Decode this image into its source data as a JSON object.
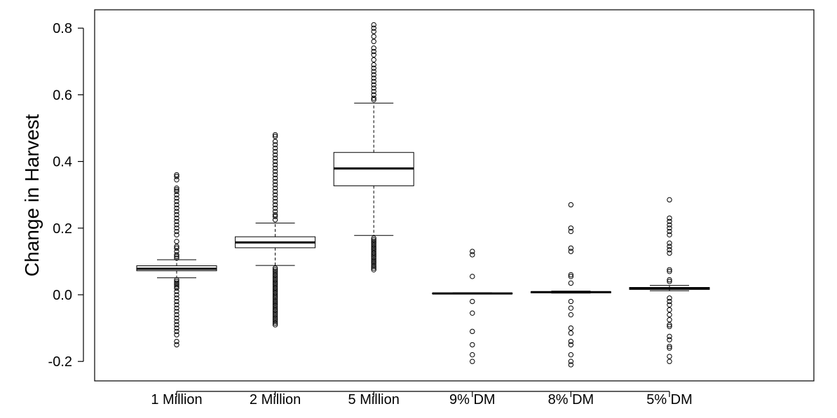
{
  "chart_data": {
    "type": "boxplot",
    "title": "",
    "xlabel": "",
    "ylabel": "Change in Harvest",
    "ylim": [
      -0.25,
      0.83
    ],
    "yticks": [
      -0.2,
      0.0,
      0.2,
      0.4,
      0.6,
      0.8
    ],
    "ytick_labels": [
      "-0.2",
      "0.0",
      "0.2",
      "0.4",
      "0.6",
      "0.8"
    ],
    "grid": false,
    "legend": "none",
    "categories": [
      "1 Million",
      "2 Million",
      "5 Million",
      "9% DM",
      "8% DM",
      "5% DM"
    ],
    "boxes": [
      {
        "category": "1 Million",
        "whisker_low": 0.051,
        "q1": 0.072,
        "median": 0.078,
        "q3": 0.087,
        "whisker_high": 0.105,
        "outliers": [
          0.36,
          0.355,
          0.345,
          0.32,
          0.315,
          0.31,
          0.3,
          0.29,
          0.28,
          0.27,
          0.26,
          0.25,
          0.24,
          0.23,
          0.22,
          0.21,
          0.2,
          0.19,
          0.18,
          0.16,
          0.145,
          0.14,
          0.13,
          0.12,
          0.115,
          0.11,
          0.045,
          0.04,
          0.035,
          0.03,
          0.025,
          0.02,
          0.01,
          0.0,
          -0.01,
          -0.02,
          -0.03,
          -0.04,
          -0.05,
          -0.06,
          -0.07,
          -0.08,
          -0.09,
          -0.1,
          -0.11,
          -0.12,
          -0.14,
          -0.15
        ]
      },
      {
        "category": "2 Million",
        "whisker_low": 0.088,
        "q1": 0.141,
        "median": 0.157,
        "q3": 0.174,
        "whisker_high": 0.215,
        "outliers": [
          0.48,
          0.475,
          0.46,
          0.45,
          0.44,
          0.43,
          0.42,
          0.41,
          0.4,
          0.39,
          0.38,
          0.37,
          0.36,
          0.35,
          0.34,
          0.33,
          0.32,
          0.31,
          0.3,
          0.29,
          0.28,
          0.27,
          0.26,
          0.25,
          0.24,
          0.235,
          0.225,
          0.08,
          0.075,
          0.07,
          0.065,
          0.06,
          0.055,
          0.05,
          0.045,
          0.04,
          0.035,
          0.03,
          0.025,
          0.02,
          0.015,
          0.01,
          0.005,
          0.0,
          -0.005,
          -0.01,
          -0.015,
          -0.02,
          -0.025,
          -0.03,
          -0.035,
          -0.04,
          -0.045,
          -0.05,
          -0.055,
          -0.06,
          -0.065,
          -0.07,
          -0.075,
          -0.08,
          -0.085,
          -0.09
        ]
      },
      {
        "category": "5 Million",
        "whisker_low": 0.178,
        "q1": 0.327,
        "median": 0.379,
        "q3": 0.427,
        "whisker_high": 0.575,
        "outliers": [
          0.81,
          0.8,
          0.79,
          0.775,
          0.76,
          0.74,
          0.73,
          0.72,
          0.705,
          0.69,
          0.68,
          0.67,
          0.66,
          0.65,
          0.64,
          0.63,
          0.62,
          0.61,
          0.6,
          0.59,
          0.585,
          0.17,
          0.165,
          0.16,
          0.155,
          0.15,
          0.145,
          0.14,
          0.135,
          0.13,
          0.125,
          0.12,
          0.115,
          0.11,
          0.105,
          0.1,
          0.095,
          0.09,
          0.085,
          0.08,
          0.075
        ]
      },
      {
        "category": "9% DM",
        "whisker_low": 0.002,
        "q1": 0.003,
        "median": 0.004,
        "q3": 0.005,
        "whisker_high": 0.006,
        "outliers": [
          0.13,
          0.12,
          0.055,
          -0.02,
          -0.055,
          -0.11,
          -0.15,
          -0.18,
          -0.2
        ]
      },
      {
        "category": "8% DM",
        "whisker_low": 0.005,
        "q1": 0.006,
        "median": 0.008,
        "q3": 0.009,
        "whisker_high": 0.011,
        "outliers": [
          0.27,
          0.2,
          0.19,
          0.14,
          0.13,
          0.06,
          0.055,
          0.035,
          -0.02,
          -0.04,
          -0.06,
          -0.1,
          -0.115,
          -0.14,
          -0.15,
          -0.18,
          -0.2,
          -0.21
        ]
      },
      {
        "category": "5% DM",
        "whisker_low": 0.012,
        "q1": 0.016,
        "median": 0.019,
        "q3": 0.022,
        "whisker_high": 0.028,
        "outliers": [
          0.285,
          0.23,
          0.22,
          0.21,
          0.2,
          0.19,
          0.18,
          0.155,
          0.145,
          0.135,
          0.125,
          0.075,
          0.07,
          0.045,
          0.04,
          -0.01,
          -0.02,
          -0.03,
          -0.045,
          -0.06,
          -0.075,
          -0.09,
          -0.095,
          -0.125,
          -0.135,
          -0.155,
          -0.16,
          -0.185,
          -0.2
        ]
      }
    ]
  }
}
